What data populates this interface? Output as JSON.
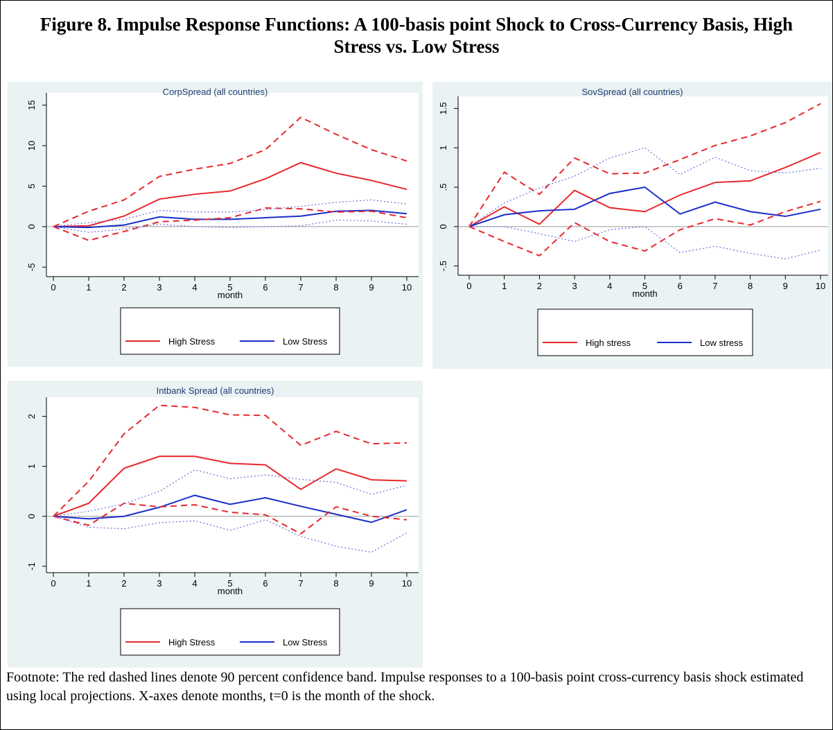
{
  "title": "Figure 8. Impulse Response Functions: A 100-basis point Shock to Cross-Currency Basis, High Stress vs. Low Stress",
  "footnote": "Footnote: The red dashed lines denote 90 percent confidence band. Impulse responses to a 100-basis point cross-currency basis shock estimated using local projections. X-axes denote months, t=0 is the month of the shock.",
  "chart_data": [
    {
      "type": "line",
      "title": "CorpSpread (all countries)",
      "xlabel": "month",
      "x": [
        0,
        1,
        2,
        3,
        4,
        5,
        6,
        7,
        8,
        9,
        10
      ],
      "xlim": [
        0,
        10
      ],
      "xticks": [
        0,
        1,
        2,
        3,
        4,
        5,
        6,
        7,
        8,
        9,
        10
      ],
      "ylim": [
        -6,
        16
      ],
      "yticks": [
        -5,
        0,
        5,
        10,
        15
      ],
      "yline": 0,
      "series": [
        {
          "name": "High Stress",
          "color": "#e8262b",
          "style": "solid",
          "values": [
            0,
            0.1,
            1.3,
            3.4,
            4.0,
            4.4,
            5.9,
            7.9,
            6.6,
            5.7,
            4.6
          ]
        },
        {
          "name": "Low Stress",
          "color": "#1a2dc8",
          "style": "solid",
          "values": [
            0,
            -0.1,
            0.2,
            1.2,
            0.9,
            0.9,
            1.1,
            1.3,
            1.9,
            2.0,
            1.6
          ]
        },
        {
          "color": "#e8262b",
          "style": "dashed",
          "values": [
            0,
            1.9,
            3.3,
            6.2,
            7.1,
            7.8,
            9.5,
            13.5,
            11.4,
            9.5,
            8.1
          ]
        },
        {
          "color": "#e8262b",
          "style": "dashed",
          "values": [
            0,
            -1.7,
            -0.6,
            0.6,
            0.8,
            1.1,
            2.3,
            2.2,
            1.8,
            1.9,
            1.1
          ]
        },
        {
          "color": "#6a6ae0",
          "style": "dotted",
          "values": [
            0,
            0.5,
            0.9,
            2.0,
            1.8,
            1.8,
            2.1,
            2.5,
            3.0,
            3.3,
            2.8
          ]
        },
        {
          "color": "#6a6ae0",
          "style": "dotted",
          "values": [
            0,
            -0.7,
            -0.3,
            0.3,
            0.0,
            -0.1,
            0.0,
            0.1,
            0.8,
            0.7,
            0.3
          ]
        }
      ]
    },
    {
      "type": "line",
      "title": "SovSpread (all countries)",
      "xlabel": "month",
      "x": [
        0,
        1,
        2,
        3,
        4,
        5,
        6,
        7,
        8,
        9,
        10
      ],
      "xlim": [
        0,
        10
      ],
      "xticks": [
        0,
        1,
        2,
        3,
        4,
        5,
        6,
        7,
        8,
        9,
        10
      ],
      "ylim": [
        -0.6,
        1.6
      ],
      "yticks": [
        {
          "value": -0.5,
          "label": "-.5"
        },
        0,
        {
          "value": 0.5,
          "label": ".5"
        },
        1,
        1.5
      ],
      "yline": 0,
      "series": [
        {
          "name": "High stress",
          "color": "#e8262b",
          "style": "solid",
          "values": [
            0,
            0.25,
            0.03,
            0.46,
            0.24,
            0.19,
            0.4,
            0.56,
            0.58,
            0.75,
            0.94
          ]
        },
        {
          "name": "Low stress",
          "color": "#1a2dc8",
          "style": "solid",
          "values": [
            0,
            0.15,
            0.2,
            0.22,
            0.42,
            0.5,
            0.16,
            0.31,
            0.19,
            0.13,
            0.22
          ]
        },
        {
          "color": "#e8262b",
          "style": "dashed",
          "values": [
            0,
            0.69,
            0.41,
            0.87,
            0.67,
            0.68,
            0.85,
            1.03,
            1.15,
            1.32,
            1.56
          ]
        },
        {
          "color": "#e8262b",
          "style": "dashed",
          "values": [
            0,
            -0.19,
            -0.37,
            0.05,
            -0.19,
            -0.31,
            -0.04,
            0.1,
            0.02,
            0.19,
            0.32
          ]
        },
        {
          "color": "#6a6ae0",
          "style": "dotted",
          "values": [
            0,
            0.3,
            0.49,
            0.64,
            0.87,
            1.0,
            0.66,
            0.88,
            0.71,
            0.68,
            0.74
          ]
        },
        {
          "color": "#6a6ae0",
          "style": "dotted",
          "values": [
            0,
            0.0,
            -0.09,
            -0.19,
            -0.04,
            0.0,
            -0.33,
            -0.25,
            -0.34,
            -0.41,
            -0.3
          ]
        }
      ]
    },
    {
      "type": "line",
      "title": "Intbank Spread (all countries)",
      "xlabel": "month",
      "x": [
        0,
        1,
        2,
        3,
        4,
        5,
        6,
        7,
        8,
        9,
        10
      ],
      "xlim": [
        0,
        10
      ],
      "xticks": [
        0,
        1,
        2,
        3,
        4,
        5,
        6,
        7,
        8,
        9,
        10
      ],
      "ylim": [
        -1.1,
        2.3
      ],
      "yticks": [
        -1,
        0,
        1,
        2
      ],
      "yline": 0,
      "series": [
        {
          "name": "High Stress",
          "color": "#e8262b",
          "style": "solid",
          "values": [
            0,
            0.26,
            0.96,
            1.2,
            1.2,
            1.06,
            1.03,
            0.54,
            0.95,
            0.73,
            0.71
          ]
        },
        {
          "name": "Low Stress",
          "color": "#1a2dc8",
          "style": "solid",
          "values": [
            0,
            -0.05,
            0.0,
            0.18,
            0.42,
            0.24,
            0.37,
            0.2,
            0.04,
            -0.12,
            0.13
          ]
        },
        {
          "color": "#e8262b",
          "style": "dashed",
          "values": [
            0,
            0.7,
            1.65,
            2.22,
            2.18,
            2.03,
            2.02,
            1.42,
            1.7,
            1.45,
            1.47
          ]
        },
        {
          "color": "#e8262b",
          "style": "dashed",
          "values": [
            0,
            -0.18,
            0.26,
            0.19,
            0.23,
            0.08,
            0.03,
            -0.35,
            0.19,
            0.0,
            -0.07
          ]
        },
        {
          "color": "#6a6ae0",
          "style": "dotted",
          "values": [
            0,
            0.1,
            0.25,
            0.5,
            0.93,
            0.75,
            0.83,
            0.74,
            0.68,
            0.44,
            0.62
          ]
        },
        {
          "color": "#6a6ae0",
          "style": "dotted",
          "values": [
            0,
            -0.22,
            -0.25,
            -0.13,
            -0.09,
            -0.28,
            -0.07,
            -0.4,
            -0.6,
            -0.72,
            -0.33
          ]
        }
      ]
    }
  ]
}
